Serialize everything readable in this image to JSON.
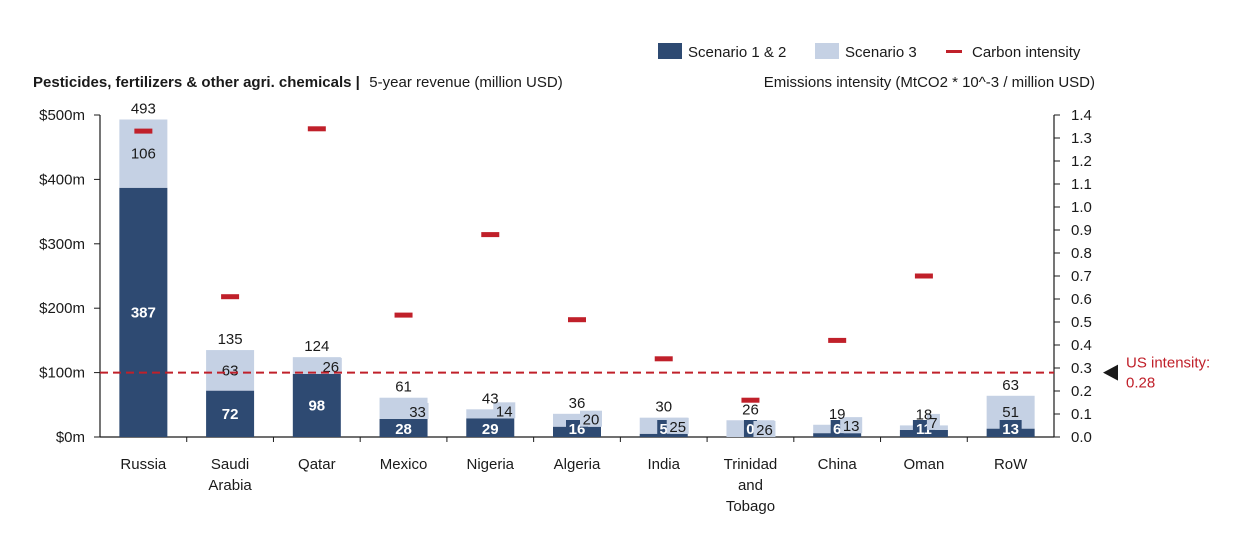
{
  "chart_data": {
    "type": "bar",
    "stacked": true,
    "title_bold": "Pesticides, fertilizers & other agri. chemicals |",
    "title_rest": "5-year revenue (million USD)",
    "right_axis_title": "Emissions intensity (MtCO2 * 10^-3 / million USD)",
    "categories": [
      "Russia",
      "Saudi Arabia",
      "Qatar",
      "Mexico",
      "Nigeria",
      "Algeria",
      "India",
      "Trinidad and Tobago",
      "China",
      "Oman",
      "RoW"
    ],
    "category_lines": [
      [
        "Russia"
      ],
      [
        "Saudi",
        "Arabia"
      ],
      [
        "Qatar"
      ],
      [
        "Mexico"
      ],
      [
        "Nigeria"
      ],
      [
        "Algeria"
      ],
      [
        "India"
      ],
      [
        "Trinidad",
        "and",
        "Tobago"
      ],
      [
        "China"
      ],
      [
        "Oman"
      ],
      [
        "RoW"
      ]
    ],
    "series": [
      {
        "name": "Scenario 1 & 2",
        "color": "#2e4a72",
        "values": [
          387,
          72,
          98,
          28,
          29,
          16,
          5,
          0,
          6,
          11,
          13
        ],
        "value_labels": [
          "387",
          "72",
          "98",
          "28",
          "29",
          "16",
          "5",
          "0",
          "6",
          "11",
          "13"
        ]
      },
      {
        "name": "Scenario 3",
        "color": "#c5d1e4",
        "values": [
          106,
          63,
          26,
          33,
          14,
          20,
          25,
          26,
          13,
          7,
          51
        ],
        "value_labels": [
          "106",
          "63",
          "26",
          "33",
          "14",
          "20",
          "25",
          "26",
          "13",
          "7",
          "51"
        ]
      }
    ],
    "totals": [
      "493",
      "135",
      "124",
      "61",
      "43",
      "36",
      "30",
      "26",
      "19",
      "18",
      "63"
    ],
    "carbon_intensity": {
      "name": "Carbon intensity",
      "color": "#c0202a",
      "values": [
        1.33,
        0.61,
        1.34,
        0.53,
        0.88,
        0.51,
        0.34,
        0.16,
        0.42,
        0.7,
        null
      ]
    },
    "left_axis": {
      "ylim": [
        0,
        500
      ],
      "ticks": [
        0,
        100,
        200,
        300,
        400,
        500
      ],
      "tick_labels": [
        "$0m",
        "$100m",
        "$200m",
        "$300m",
        "$400m",
        "$500m"
      ]
    },
    "right_axis": {
      "ylim": [
        0,
        1.4
      ],
      "ticks": [
        0,
        0.1,
        0.2,
        0.3,
        0.4,
        0.5,
        0.6,
        0.7,
        0.8,
        0.9,
        1.0,
        1.1,
        1.2,
        1.3,
        1.4
      ],
      "tick_labels": [
        "0.0",
        "0.1",
        "0.2",
        "0.3",
        "0.4",
        "0.5",
        "0.6",
        "0.7",
        "0.8",
        "0.9",
        "1.0",
        "1.1",
        "1.2",
        "1.3",
        "1.4"
      ]
    },
    "reference_line": {
      "value": 0.28,
      "label_line1": "US intensity:",
      "label_line2": "0.28",
      "color": "#c0202a"
    },
    "grid": false,
    "legend_position": "top-right"
  }
}
